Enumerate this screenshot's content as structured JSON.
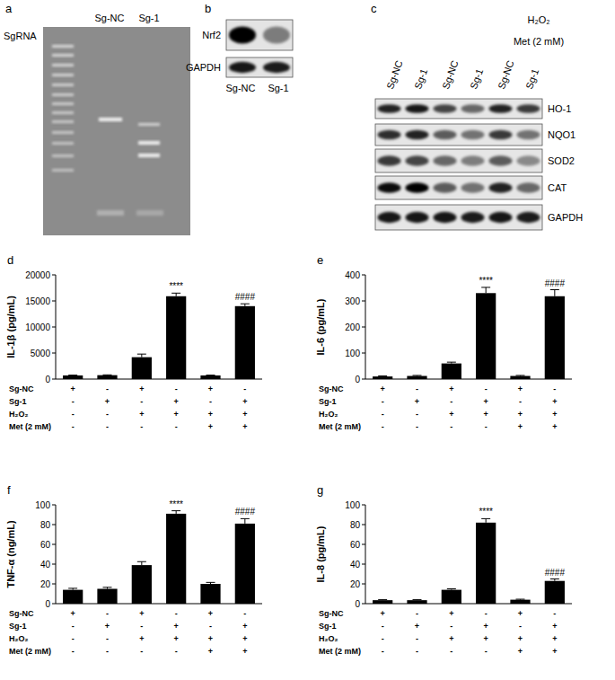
{
  "panels": {
    "a": {
      "letter": "a",
      "title": "SgRNA",
      "lanes": [
        "Sg-NC",
        "Sg-1"
      ]
    },
    "b": {
      "letter": "b",
      "rows": [
        "Nrf2",
        "GAPDH"
      ],
      "lanes": [
        "Sg-NC",
        "Sg-1"
      ]
    },
    "c": {
      "letter": "c",
      "treatments": [
        "H₂O₂",
        "Met (2 mM)"
      ],
      "rows": [
        "HO-1",
        "NQO1",
        "SOD2",
        "CAT",
        "GAPDH"
      ],
      "lanes": [
        "Sg-NC",
        "Sg-1",
        "Sg-NC",
        "Sg-1",
        "Sg-NC",
        "Sg-1"
      ]
    }
  },
  "chart_data": [
    {
      "type": "bar",
      "panel": "d",
      "y_label": "IL-1β (pg/mL)",
      "color": "#000000",
      "categories": [
        null,
        null,
        null,
        null,
        null,
        null
      ],
      "values": [
        700,
        750,
        4200,
        15900,
        700,
        14000
      ],
      "errors": [
        60,
        60,
        600,
        600,
        60,
        450
      ],
      "annotations": [
        null,
        null,
        null,
        "****",
        null,
        "####"
      ],
      "ylim": [
        0,
        20000
      ],
      "yticks": [
        0,
        5000,
        10000,
        15000,
        20000
      ],
      "conditions": [
        {
          "label": "Sg-NC",
          "marks": [
            "+",
            "-",
            "+",
            "-",
            "+",
            "-"
          ]
        },
        {
          "label": "Sg-1",
          "marks": [
            "-",
            "+",
            "-",
            "+",
            "-",
            "+"
          ]
        },
        {
          "label": "H₂O₂",
          "marks": [
            "-",
            "-",
            "+",
            "+",
            "+",
            "+"
          ]
        },
        {
          "label": "Met (2 mM)",
          "marks": [
            "-",
            "-",
            "-",
            "-",
            "+",
            "+"
          ]
        }
      ]
    },
    {
      "type": "bar",
      "panel": "e",
      "y_label": "IL-6 (pg/mL)",
      "color": "#000000",
      "categories": [
        null,
        null,
        null,
        null,
        null,
        null
      ],
      "values": [
        10,
        12,
        60,
        330,
        12,
        318
      ],
      "errors": [
        2,
        2,
        5,
        22,
        2,
        25
      ],
      "annotations": [
        null,
        null,
        null,
        "****",
        null,
        "####"
      ],
      "ylim": [
        0,
        400
      ],
      "yticks": [
        0,
        100,
        200,
        300,
        400
      ],
      "conditions": [
        {
          "label": "Sg-NC",
          "marks": [
            "+",
            "-",
            "+",
            "-",
            "+",
            "-"
          ]
        },
        {
          "label": "Sg-1",
          "marks": [
            "-",
            "+",
            "-",
            "+",
            "-",
            "+"
          ]
        },
        {
          "label": "H₂O₂",
          "marks": [
            "-",
            "-",
            "+",
            "+",
            "+",
            "+"
          ]
        },
        {
          "label": "Met (2 mM)",
          "marks": [
            "-",
            "-",
            "-",
            "-",
            "+",
            "+"
          ]
        }
      ]
    },
    {
      "type": "bar",
      "panel": "f",
      "y_label": "TNF-α (ng/mL)",
      "color": "#000000",
      "categories": [
        null,
        null,
        null,
        null,
        null,
        null
      ],
      "values": [
        14,
        15,
        39,
        91,
        20,
        81
      ],
      "errors": [
        1.5,
        1.5,
        3.5,
        3,
        1.5,
        5
      ],
      "annotations": [
        null,
        null,
        null,
        "****",
        null,
        "####"
      ],
      "ylim": [
        0,
        100
      ],
      "yticks": [
        0,
        20,
        40,
        60,
        80,
        100
      ],
      "conditions": [
        {
          "label": "Sg-NC",
          "marks": [
            "+",
            "-",
            "+",
            "-",
            "+",
            "-"
          ]
        },
        {
          "label": "Sg-1",
          "marks": [
            "-",
            "+",
            "-",
            "+",
            "-",
            "+"
          ]
        },
        {
          "label": "H₂O₂",
          "marks": [
            "-",
            "-",
            "+",
            "+",
            "+",
            "+"
          ]
        },
        {
          "label": "Met (2 mM)",
          "marks": [
            "-",
            "-",
            "-",
            "-",
            "+",
            "+"
          ]
        }
      ]
    },
    {
      "type": "bar",
      "panel": "g",
      "y_label": "IL-8 (pg/mL)",
      "color": "#000000",
      "categories": [
        null,
        null,
        null,
        null,
        null,
        null
      ],
      "values": [
        3.5,
        3.5,
        14,
        82,
        4,
        23
      ],
      "errors": [
        0.5,
        0.5,
        1,
        4,
        0.5,
        2
      ],
      "annotations": [
        null,
        null,
        null,
        "****",
        null,
        "####"
      ],
      "ylim": [
        0,
        100
      ],
      "yticks": [
        0,
        20,
        40,
        60,
        80,
        100
      ],
      "conditions": [
        {
          "label": "Sg-NC",
          "marks": [
            "+",
            "-",
            "+",
            "-",
            "+",
            "-"
          ]
        },
        {
          "label": "Sg-1",
          "marks": [
            "-",
            "+",
            "-",
            "+",
            "-",
            "+"
          ]
        },
        {
          "label": "H₂O₂",
          "marks": [
            "-",
            "-",
            "+",
            "+",
            "+",
            "+"
          ]
        },
        {
          "label": "Met (2 mM)",
          "marks": [
            "-",
            "-",
            "-",
            "-",
            "+",
            "+"
          ]
        }
      ]
    }
  ]
}
